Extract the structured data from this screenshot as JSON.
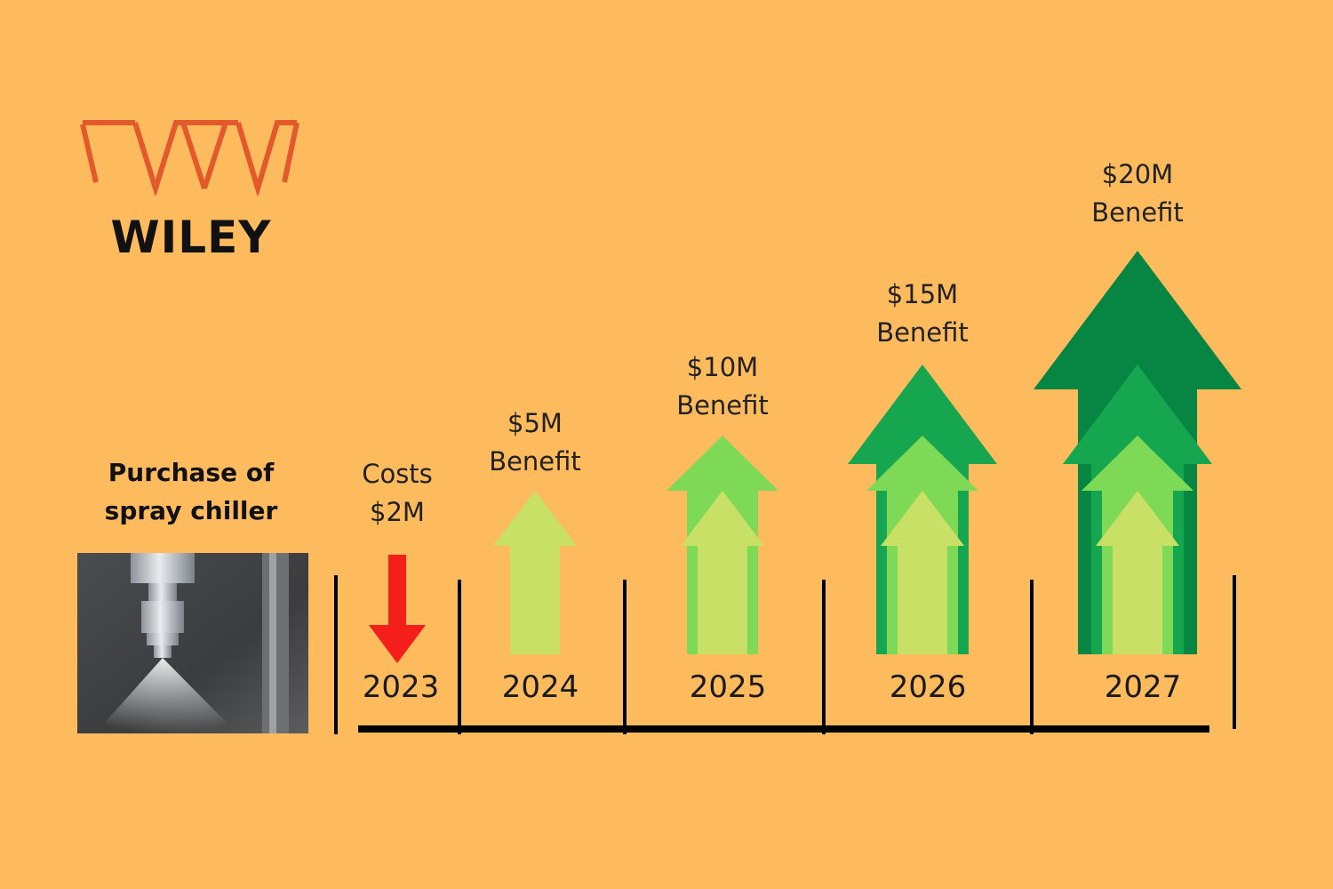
{
  "brand": {
    "name": "WILEY",
    "logo_color": "#E2592B"
  },
  "caption": {
    "line1": "Purchase of",
    "line2": "spray chiller"
  },
  "photo_icon": "spray-nozzle-photo",
  "colors": {
    "background": "#FDBB5E",
    "cost": "#F41E1A",
    "benefit_layers": [
      "#C9E067",
      "#7ED957",
      "#16A650",
      "#078643"
    ]
  },
  "chart_data": {
    "type": "timeline",
    "years": [
      {
        "year": "2023",
        "kind": "cost",
        "value": 2,
        "label_lines": [
          "Costs",
          "$2M"
        ]
      },
      {
        "year": "2024",
        "kind": "benefit",
        "value": 5,
        "label_lines": [
          "$5M",
          "Benefit"
        ]
      },
      {
        "year": "2025",
        "kind": "benefit",
        "value": 10,
        "label_lines": [
          "$10M",
          "Benefit"
        ]
      },
      {
        "year": "2026",
        "kind": "benefit",
        "value": 15,
        "label_lines": [
          "$15M",
          "Benefit"
        ]
      },
      {
        "year": "2027",
        "kind": "benefit",
        "value": 20,
        "label_lines": [
          "$20M",
          "Benefit"
        ]
      }
    ]
  }
}
